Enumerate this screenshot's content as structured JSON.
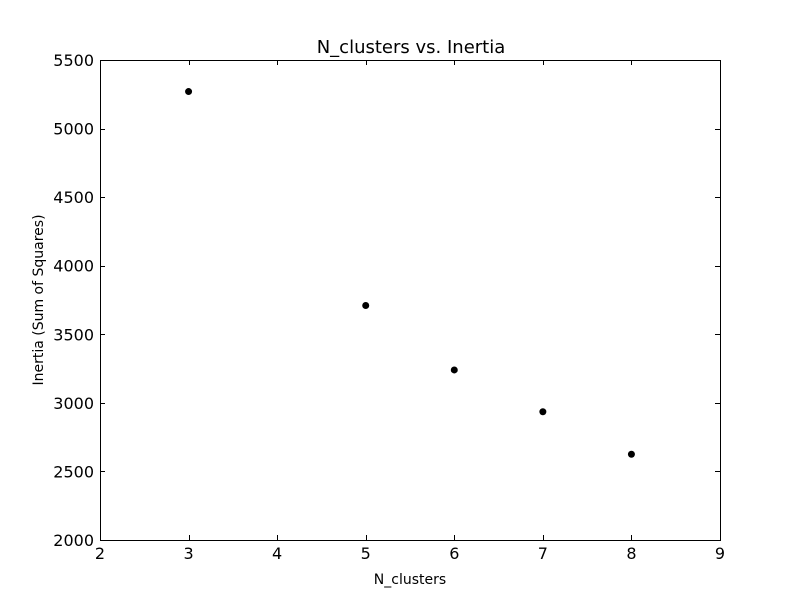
{
  "chart_data": {
    "type": "scatter",
    "title": "N_clusters vs. Inertia",
    "xlabel": "N_clusters",
    "ylabel": "Inertia (Sum of Squares)",
    "xlim": [
      2,
      9
    ],
    "ylim": [
      2000,
      5500
    ],
    "xticks": [
      2,
      3,
      4,
      5,
      6,
      7,
      8,
      9
    ],
    "yticks": [
      2000,
      2500,
      3000,
      3500,
      4000,
      4500,
      5000,
      5500
    ],
    "grid": false,
    "point_color": "#000000",
    "points": [
      {
        "x": 3,
        "y": 5270
      },
      {
        "x": 5,
        "y": 3710
      },
      {
        "x": 6,
        "y": 3240
      },
      {
        "x": 7,
        "y": 2935
      },
      {
        "x": 8,
        "y": 2625
      }
    ]
  }
}
